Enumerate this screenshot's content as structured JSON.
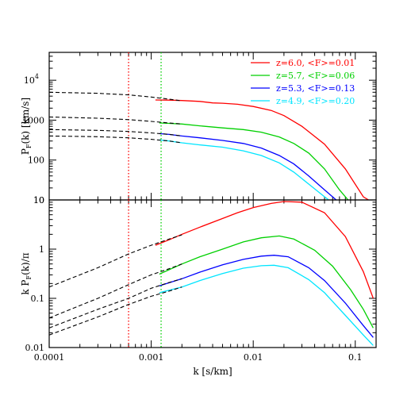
{
  "chart_data": [
    {
      "type": "line",
      "panel": "top",
      "xlabel": "",
      "ylabel": "P_F(k) [km/s]",
      "ylabel_parts": {
        "main": "P",
        "sub": "F",
        "rest": "(k)  [km/s]"
      },
      "xscale": "log",
      "yscale": "log",
      "xlim": [
        0.0001,
        0.16
      ],
      "ylim": [
        10,
        50000
      ],
      "yticks": [
        {
          "value": 10,
          "label": "10"
        },
        {
          "value": 100,
          "label": "100"
        },
        {
          "value": 1000,
          "label": "1000"
        },
        {
          "value": 10000,
          "label": "10",
          "sup": "4"
        }
      ],
      "vlines": [
        {
          "x": 0.0006,
          "color": "#ff0000",
          "style": "dotted"
        },
        {
          "x": 0.00125,
          "color": "#00d000",
          "style": "dotted"
        }
      ],
      "legend": {
        "placement": "top-right"
      },
      "series": [
        {
          "name": "z=6.0,  <F>=0.01",
          "color": "#ff0000",
          "points": [
            [
              0.0011,
              3200
            ],
            [
              0.0015,
              3180
            ],
            [
              0.002,
              3100
            ],
            [
              0.003,
              2950
            ],
            [
              0.004,
              2700
            ],
            [
              0.005,
              2650
            ],
            [
              0.007,
              2500
            ],
            [
              0.01,
              2200
            ],
            [
              0.015,
              1750
            ],
            [
              0.02,
              1300
            ],
            [
              0.03,
              700
            ],
            [
              0.05,
              250
            ],
            [
              0.08,
              60
            ],
            [
              0.12,
              12
            ],
            [
              0.135,
              10
            ]
          ],
          "extrapolation": [
            [
              0.0001,
              5000
            ],
            [
              0.0003,
              4700
            ],
            [
              0.0006,
              4300
            ],
            [
              0.001,
              3800
            ],
            [
              0.0015,
              3350
            ],
            [
              0.002,
              3050
            ]
          ]
        },
        {
          "name": "z=5.7,  <F>=0.06",
          "color": "#00d000",
          "points": [
            [
              0.0012,
              850
            ],
            [
              0.0015,
              830
            ],
            [
              0.002,
              800
            ],
            [
              0.003,
              720
            ],
            [
              0.005,
              640
            ],
            [
              0.008,
              580
            ],
            [
              0.012,
              500
            ],
            [
              0.018,
              380
            ],
            [
              0.025,
              260
            ],
            [
              0.035,
              150
            ],
            [
              0.05,
              60
            ],
            [
              0.07,
              18
            ],
            [
              0.085,
              10
            ]
          ],
          "extrapolation": [
            [
              0.0001,
              1200
            ],
            [
              0.0003,
              1120
            ],
            [
              0.0006,
              1030
            ],
            [
              0.001,
              930
            ],
            [
              0.0015,
              850
            ],
            [
              0.002,
              800
            ]
          ]
        },
        {
          "name": "z=5.3,  <F>=0.13",
          "color": "#0000ff",
          "points": [
            [
              0.0012,
              460
            ],
            [
              0.0015,
              440
            ],
            [
              0.002,
              400
            ],
            [
              0.003,
              360
            ],
            [
              0.005,
              310
            ],
            [
              0.008,
              260
            ],
            [
              0.012,
              200
            ],
            [
              0.018,
              130
            ],
            [
              0.025,
              80
            ],
            [
              0.035,
              40
            ],
            [
              0.05,
              18
            ],
            [
              0.065,
              10
            ]
          ],
          "extrapolation": [
            [
              0.0001,
              580
            ],
            [
              0.0003,
              555
            ],
            [
              0.0006,
              520
            ],
            [
              0.001,
              480
            ],
            [
              0.0015,
              440
            ],
            [
              0.002,
              400
            ]
          ]
        },
        {
          "name": "z=4.9,  <F>=0.20",
          "color": "#00e5ff",
          "points": [
            [
              0.0012,
              320
            ],
            [
              0.0015,
              300
            ],
            [
              0.002,
              270
            ],
            [
              0.003,
              240
            ],
            [
              0.005,
              210
            ],
            [
              0.008,
              170
            ],
            [
              0.012,
              130
            ],
            [
              0.018,
              85
            ],
            [
              0.025,
              50
            ],
            [
              0.035,
              25
            ],
            [
              0.05,
              12
            ],
            [
              0.055,
              10
            ]
          ],
          "extrapolation": [
            [
              0.0001,
              400
            ],
            [
              0.0003,
              385
            ],
            [
              0.0006,
              360
            ],
            [
              0.001,
              330
            ],
            [
              0.0015,
              300
            ],
            [
              0.002,
              270
            ]
          ]
        }
      ]
    },
    {
      "type": "line",
      "panel": "bottom",
      "xlabel": "k  [s/km]",
      "ylabel": "k P_F(k)/π",
      "ylabel_parts": {
        "pre": "k  P",
        "sub": "F",
        "rest": "(k)/π"
      },
      "xscale": "log",
      "yscale": "log",
      "xlim": [
        0.0001,
        0.16
      ],
      "ylim": [
        0.01,
        10
      ],
      "xticks": [
        {
          "value": 0.0001,
          "label": "0.0001"
        },
        {
          "value": 0.001,
          "label": "0.001"
        },
        {
          "value": 0.01,
          "label": "0.01"
        },
        {
          "value": 0.1,
          "label": "0.1"
        }
      ],
      "yticks": [
        {
          "value": 0.01,
          "label": "0.01"
        },
        {
          "value": 0.1,
          "label": "0.1"
        },
        {
          "value": 1,
          "label": "1"
        },
        {
          "value": 10,
          "label": "10"
        }
      ],
      "vlines": [
        {
          "x": 0.0006,
          "color": "#ff0000",
          "style": "dotted"
        },
        {
          "x": 0.00125,
          "color": "#00d000",
          "style": "dotted"
        }
      ],
      "series": [
        {
          "name": "z=6.0,  <F>=0.01",
          "color": "#ff0000",
          "points": [
            [
              0.0011,
              1.2
            ],
            [
              0.0015,
              1.55
            ],
            [
              0.002,
              2.0
            ],
            [
              0.003,
              2.8
            ],
            [
              0.005,
              4.2
            ],
            [
              0.007,
              5.5
            ],
            [
              0.01,
              7.0
            ],
            [
              0.015,
              8.5
            ],
            [
              0.02,
              9.3
            ],
            [
              0.03,
              9.0
            ],
            [
              0.05,
              5.5
            ],
            [
              0.08,
              1.8
            ],
            [
              0.12,
              0.35
            ],
            [
              0.15,
              0.1
            ]
          ],
          "extrapolation": [
            [
              0.0001,
              0.17
            ],
            [
              0.0003,
              0.42
            ],
            [
              0.0006,
              0.8
            ],
            [
              0.001,
              1.2
            ],
            [
              0.0015,
              1.6
            ],
            [
              0.002,
              1.95
            ]
          ]
        },
        {
          "name": "z=5.7,  <F>=0.06",
          "color": "#00d000",
          "points": [
            [
              0.0012,
              0.31
            ],
            [
              0.002,
              0.5
            ],
            [
              0.003,
              0.7
            ],
            [
              0.005,
              1.0
            ],
            [
              0.008,
              1.4
            ],
            [
              0.012,
              1.7
            ],
            [
              0.018,
              1.85
            ],
            [
              0.025,
              1.6
            ],
            [
              0.04,
              0.95
            ],
            [
              0.06,
              0.45
            ],
            [
              0.09,
              0.15
            ],
            [
              0.12,
              0.06
            ],
            [
              0.15,
              0.025
            ]
          ],
          "extrapolation": [
            [
              0.0001,
              0.04
            ],
            [
              0.0003,
              0.1
            ],
            [
              0.0006,
              0.19
            ],
            [
              0.001,
              0.3
            ],
            [
              0.0015,
              0.4
            ],
            [
              0.002,
              0.5
            ]
          ]
        },
        {
          "name": "z=5.3,  <F>=0.13",
          "color": "#0000ff",
          "points": [
            [
              0.0012,
              0.18
            ],
            [
              0.002,
              0.25
            ],
            [
              0.003,
              0.34
            ],
            [
              0.005,
              0.48
            ],
            [
              0.008,
              0.62
            ],
            [
              0.012,
              0.72
            ],
            [
              0.016,
              0.75
            ],
            [
              0.022,
              0.7
            ],
            [
              0.035,
              0.42
            ],
            [
              0.05,
              0.23
            ],
            [
              0.08,
              0.08
            ],
            [
              0.12,
              0.028
            ],
            [
              0.15,
              0.016
            ]
          ],
          "extrapolation": [
            [
              0.0001,
              0.025
            ],
            [
              0.0003,
              0.06
            ],
            [
              0.0006,
              0.1
            ],
            [
              0.001,
              0.16
            ],
            [
              0.0015,
              0.21
            ],
            [
              0.002,
              0.25
            ]
          ]
        },
        {
          "name": "z=4.9,  <F>=0.20",
          "color": "#00e5ff",
          "points": [
            [
              0.0012,
              0.13
            ],
            [
              0.002,
              0.17
            ],
            [
              0.003,
              0.23
            ],
            [
              0.005,
              0.32
            ],
            [
              0.008,
              0.41
            ],
            [
              0.012,
              0.46
            ],
            [
              0.016,
              0.47
            ],
            [
              0.022,
              0.42
            ],
            [
              0.035,
              0.24
            ],
            [
              0.05,
              0.13
            ],
            [
              0.08,
              0.045
            ],
            [
              0.12,
              0.018
            ],
            [
              0.15,
              0.011
            ]
          ],
          "extrapolation": [
            [
              0.0001,
              0.018
            ],
            [
              0.0003,
              0.042
            ],
            [
              0.0006,
              0.075
            ],
            [
              0.001,
              0.11
            ],
            [
              0.0015,
              0.14
            ],
            [
              0.002,
              0.17
            ]
          ]
        }
      ]
    }
  ]
}
